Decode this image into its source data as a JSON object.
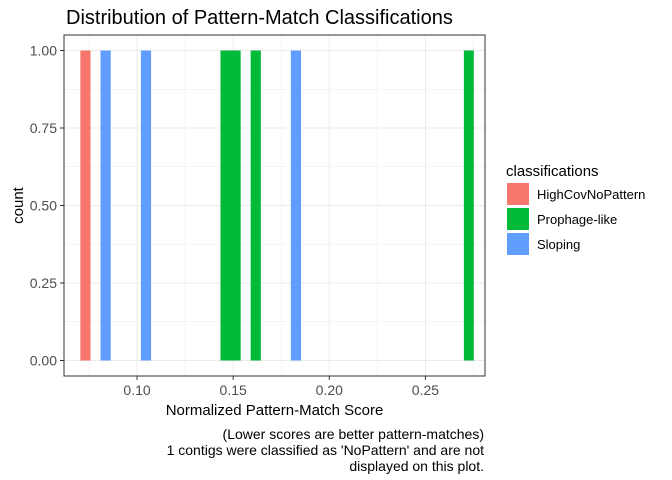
{
  "chart_data": {
    "type": "bar",
    "title": "Distribution of Pattern-Match Classifications",
    "xlabel": "Normalized Pattern-Match Score",
    "ylabel": "count",
    "xlim": [
      0.062,
      0.281
    ],
    "ylim": [
      -0.05,
      1.05
    ],
    "x_ticks": [
      0.1,
      0.15,
      0.2,
      0.25
    ],
    "x_tick_labels": [
      "0.10",
      "0.15",
      "0.20",
      "0.25"
    ],
    "y_ticks": [
      0.0,
      0.25,
      0.5,
      0.75,
      1.0
    ],
    "y_tick_labels": [
      "0.00",
      "0.25",
      "0.50",
      "0.75",
      "1.00"
    ],
    "grid": true,
    "legend_position": "right",
    "legend_title": "classifications",
    "series": [
      {
        "name": "HighCovNoPattern",
        "color": "#F8766D",
        "bars": [
          {
            "x0": 0.0705,
            "x1": 0.0758,
            "count": 1
          }
        ]
      },
      {
        "name": "Prophage-like",
        "color": "#00BA38",
        "bars": [
          {
            "x0": 0.1434,
            "x1": 0.1539,
            "count": 1
          },
          {
            "x0": 0.1591,
            "x1": 0.1644,
            "count": 1
          },
          {
            "x0": 0.27,
            "x1": 0.2752,
            "count": 1
          }
        ]
      },
      {
        "name": "Sloping",
        "color": "#619CFF",
        "bars": [
          {
            "x0": 0.081,
            "x1": 0.0863,
            "count": 1
          },
          {
            "x0": 0.102,
            "x1": 0.1073,
            "count": 1
          },
          {
            "x0": 0.18,
            "x1": 0.1853,
            "count": 1
          }
        ]
      }
    ],
    "caption": [
      "(Lower scores are better pattern-matches)",
      "1 contigs were classified as 'NoPattern' and are not",
      "displayed on this plot."
    ]
  }
}
